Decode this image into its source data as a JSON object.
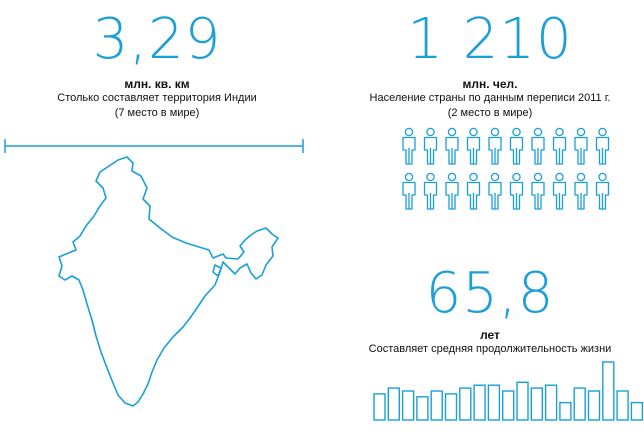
{
  "area": {
    "value": "3,29",
    "unit": "млн. кв. км",
    "description": "Столько составляет территория Индии",
    "rank": "(7 место в мире)"
  },
  "population": {
    "value": "1 210",
    "unit": "млн. чел.",
    "description": "Население страны по данным переписи 2011 г.",
    "rank": "(2 место в мире)",
    "icon": "person-icon",
    "icon_count": 20
  },
  "life_expectancy": {
    "value": "65,8",
    "unit": "лет",
    "description": "Составляет средняя продолжительность жизни",
    "bar_heights_relative": [
      0.45,
      0.55,
      0.5,
      0.4,
      0.5,
      0.45,
      0.55,
      0.6,
      0.6,
      0.5,
      0.65,
      0.55,
      0.6,
      0.3,
      0.55,
      0.5,
      1.0,
      0.5,
      0.3
    ]
  },
  "colors": {
    "accent": "#1a9fd9",
    "text": "#111111",
    "background": "#ffffff"
  }
}
